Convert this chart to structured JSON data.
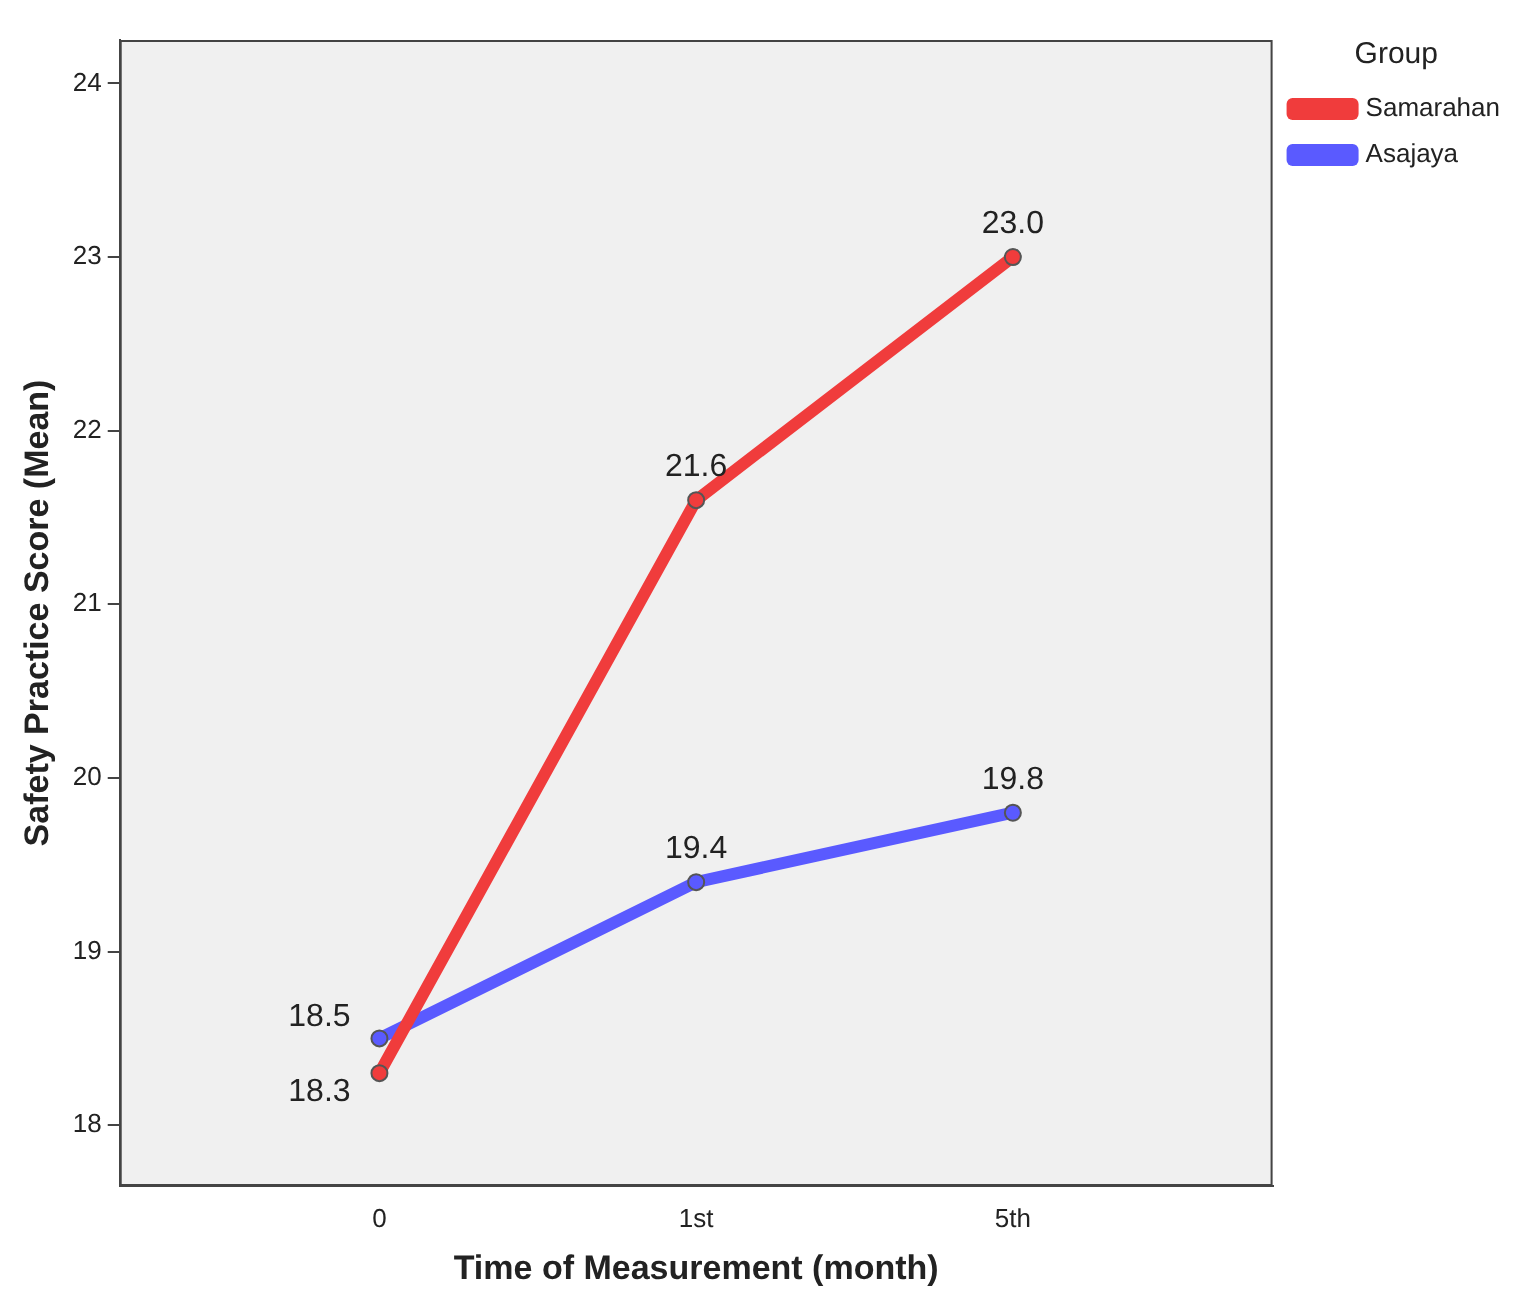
{
  "chart_data": {
    "type": "line",
    "xlabel": "Time of Measurement (month)",
    "ylabel": "Safety Practice Score (Mean)",
    "legend_title": "Group",
    "legend": "right",
    "grid": false,
    "marker": "circle",
    "line_style": "solid",
    "categories": [
      "0",
      "1st",
      "5th"
    ],
    "ylim": [
      17.65,
      24.25
    ],
    "yticks": [
      18,
      19,
      20,
      21,
      22,
      23,
      24
    ],
    "series": [
      {
        "name": "Samarahan",
        "color": "#f03c3c",
        "values": [
          18.3,
          21.6,
          23.0
        ],
        "value_labels": [
          "18.3",
          "21.6",
          "23.0"
        ]
      },
      {
        "name": "Asajaya",
        "color": "#5a5aff",
        "values": [
          18.5,
          19.4,
          19.8
        ],
        "value_labels": [
          "18.5",
          "19.4",
          "19.8"
        ]
      }
    ]
  }
}
